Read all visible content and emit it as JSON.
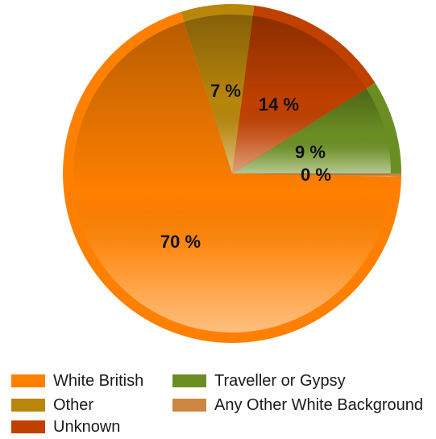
{
  "chart_data": {
    "type": "pie",
    "title": "",
    "slices": [
      {
        "name": "Traveller or Gypsy",
        "value": 9,
        "label": "9 %",
        "color": "#6b8e23"
      },
      {
        "name": "Unknown",
        "value": 14,
        "label": "14 %",
        "color": "#c04000"
      },
      {
        "name": "Other",
        "value": 7,
        "label": "7 %",
        "color": "#b8860b"
      },
      {
        "name": "White British",
        "value": 70,
        "label": "70 %",
        "color": "#ff8000"
      },
      {
        "name": "Any Other White Background",
        "value": 0.3,
        "label": "0 %",
        "color": "#cd853f"
      }
    ],
    "legend_placement": "bottom",
    "legend": [
      {
        "name": "White British",
        "color": "#ff8000"
      },
      {
        "name": "Traveller or Gypsy",
        "color": "#6b8e23"
      },
      {
        "name": "Other",
        "color": "#b8860b"
      },
      {
        "name": "Any Other White Background",
        "color": "#cd853f"
      },
      {
        "name": "Unknown",
        "color": "#c04000"
      }
    ]
  }
}
